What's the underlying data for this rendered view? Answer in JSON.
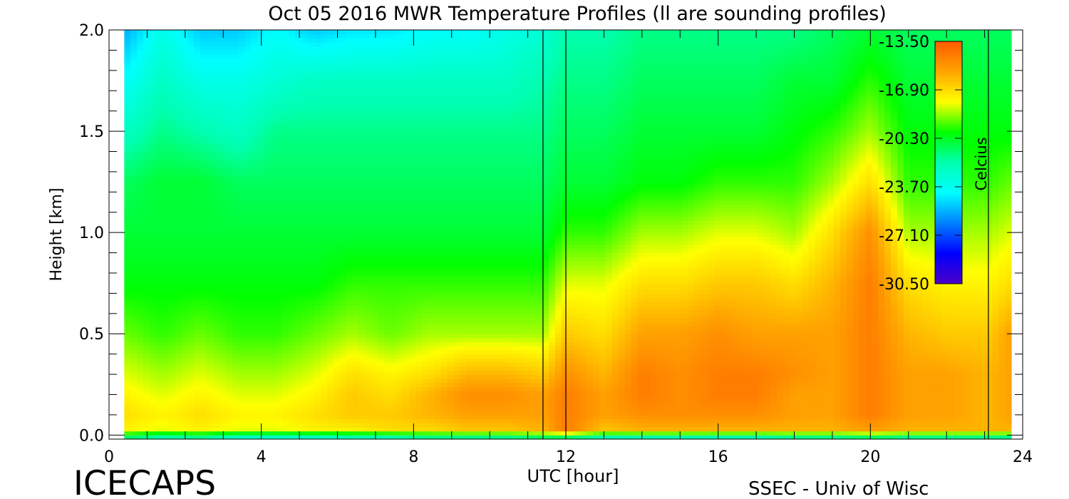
{
  "chart_data": {
    "type": "heatmap",
    "title": "Oct 05 2016 MWR Temperature Profiles (ll are sounding profiles)",
    "xlabel": "UTC [hour]",
    "ylabel": "Height [km]",
    "xlim": [
      0,
      24
    ],
    "ylim": [
      -0.02,
      2.0
    ],
    "x_ticks": [
      0,
      4,
      8,
      12,
      16,
      20,
      24
    ],
    "x_tick_labels": [
      "0",
      "4",
      "8",
      "12",
      "16",
      "20",
      "24"
    ],
    "y_ticks": [
      0.0,
      0.5,
      1.0,
      1.5,
      2.0
    ],
    "y_tick_labels": [
      "0.0",
      "0.5",
      "1.0",
      "1.5",
      "2.0"
    ],
    "data_x_range": [
      0.4,
      23.7
    ],
    "colorbar": {
      "label": "Celcius",
      "min": -30.5,
      "max": -13.5,
      "ticks": [
        -13.5,
        -16.9,
        -20.3,
        -23.7,
        -27.1,
        -30.5
      ],
      "tick_labels": [
        "-13.50",
        "-16.90",
        "-20.30",
        "-23.70",
        "-27.10",
        "-30.50"
      ],
      "colors": [
        "#ff5a00",
        "#ffa500",
        "#ffff00",
        "#00ff00",
        "#00ffb0",
        "#00ffff",
        "#0080ff",
        "#0000ff",
        "#4b00c8"
      ]
    },
    "sounding_times_utc": [
      11.4,
      12.0,
      23.1
    ],
    "time_samples_utc": [
      0.4,
      1.4,
      2.4,
      3.4,
      4.4,
      5.4,
      6.4,
      7.4,
      8.4,
      9.4,
      10.4,
      11.4,
      12.0,
      13.0,
      14.0,
      15.0,
      16.0,
      17.0,
      18.0,
      19.0,
      20.0,
      21.0,
      22.0,
      23.1,
      23.7
    ],
    "height_samples_km": [
      0.0,
      0.02,
      0.1,
      0.2,
      0.3,
      0.5,
      0.75,
      1.0,
      1.25,
      1.5,
      1.75,
      2.0
    ],
    "temperature_celsius": [
      [
        -21.0,
        -22.0,
        -21.5,
        -22.5,
        -22.5,
        -22.5,
        -22.0,
        -22.0,
        -21.5,
        -21.5,
        -21.5,
        -21.0,
        -21.0,
        -22.0,
        -22.0,
        -22.0,
        -22.0,
        -22.0,
        -21.5,
        -21.5,
        -21.0,
        -21.5,
        -21.5,
        -21.5,
        -21.5
      ],
      [
        -17.5,
        -18.0,
        -17.5,
        -18.0,
        -18.0,
        -17.5,
        -17.5,
        -17.0,
        -17.0,
        -16.5,
        -16.5,
        -16.0,
        -14.5,
        -16.5,
        -16.0,
        -16.0,
        -16.0,
        -16.0,
        -16.0,
        -16.0,
        -15.5,
        -16.0,
        -16.0,
        -16.0,
        -16.0
      ],
      [
        -17.0,
        -17.5,
        -17.0,
        -17.5,
        -17.5,
        -17.0,
        -16.5,
        -16.5,
        -16.0,
        -15.5,
        -15.5,
        -15.5,
        -14.5,
        -15.5,
        -15.0,
        -15.0,
        -15.0,
        -15.0,
        -15.5,
        -15.5,
        -14.5,
        -15.5,
        -15.5,
        -16.0,
        -15.5
      ],
      [
        -17.5,
        -18.0,
        -17.5,
        -18.0,
        -18.0,
        -17.5,
        -16.5,
        -17.0,
        -16.0,
        -15.0,
        -15.0,
        -15.5,
        -14.5,
        -15.5,
        -14.5,
        -15.0,
        -14.5,
        -14.5,
        -15.5,
        -15.5,
        -14.5,
        -15.5,
        -15.5,
        -16.0,
        -15.5
      ],
      [
        -18.0,
        -18.5,
        -18.0,
        -18.5,
        -18.5,
        -18.0,
        -17.0,
        -17.5,
        -17.0,
        -16.0,
        -16.0,
        -16.5,
        -15.0,
        -16.0,
        -14.5,
        -15.0,
        -14.5,
        -14.5,
        -15.0,
        -15.5,
        -14.5,
        -15.5,
        -15.5,
        -16.0,
        -15.5
      ],
      [
        -19.0,
        -19.5,
        -19.0,
        -19.5,
        -19.5,
        -19.0,
        -18.5,
        -19.0,
        -18.5,
        -18.5,
        -18.5,
        -18.5,
        -16.5,
        -17.0,
        -15.5,
        -15.5,
        -15.0,
        -15.5,
        -15.5,
        -15.5,
        -14.5,
        -16.0,
        -16.5,
        -16.5,
        -15.5
      ],
      [
        -20.0,
        -20.0,
        -20.0,
        -20.0,
        -20.0,
        -20.0,
        -19.5,
        -19.5,
        -19.5,
        -19.5,
        -19.5,
        -19.5,
        -18.0,
        -18.0,
        -17.0,
        -17.0,
        -16.5,
        -16.5,
        -17.0,
        -16.0,
        -14.5,
        -17.0,
        -17.5,
        -17.5,
        -17.0
      ],
      [
        -20.5,
        -20.5,
        -20.5,
        -20.5,
        -20.5,
        -20.5,
        -20.5,
        -20.5,
        -20.5,
        -20.5,
        -20.5,
        -20.5,
        -19.5,
        -19.5,
        -18.5,
        -18.5,
        -18.0,
        -18.0,
        -18.5,
        -17.0,
        -15.0,
        -18.5,
        -18.5,
        -18.5,
        -18.0
      ],
      [
        -21.0,
        -20.5,
        -20.5,
        -21.0,
        -21.0,
        -21.0,
        -21.0,
        -21.0,
        -21.0,
        -21.0,
        -21.0,
        -21.0,
        -20.5,
        -20.5,
        -20.0,
        -20.0,
        -19.5,
        -19.5,
        -19.5,
        -18.5,
        -17.0,
        -19.5,
        -19.5,
        -19.5,
        -19.0
      ],
      [
        -22.5,
        -21.5,
        -22.0,
        -22.5,
        -21.5,
        -21.5,
        -21.5,
        -21.5,
        -21.5,
        -21.5,
        -21.5,
        -21.5,
        -21.0,
        -21.0,
        -20.5,
        -20.5,
        -20.5,
        -20.5,
        -20.0,
        -19.5,
        -18.5,
        -20.0,
        -20.0,
        -20.0,
        -20.0
      ],
      [
        -24.0,
        -22.5,
        -23.5,
        -23.5,
        -23.0,
        -22.5,
        -22.5,
        -22.5,
        -22.5,
        -22.5,
        -22.5,
        -22.0,
        -21.5,
        -21.5,
        -21.0,
        -21.0,
        -21.0,
        -21.0,
        -20.5,
        -20.5,
        -19.5,
        -20.5,
        -20.5,
        -20.5,
        -20.5
      ],
      [
        -25.5,
        -23.5,
        -25.0,
        -25.0,
        -24.0,
        -25.0,
        -24.5,
        -24.5,
        -24.0,
        -24.0,
        -23.5,
        -23.0,
        -22.0,
        -22.0,
        -21.5,
        -21.5,
        -21.5,
        -21.5,
        -21.5,
        -21.0,
        -20.5,
        -21.0,
        -21.0,
        -21.0,
        -21.0
      ]
    ],
    "annotations": [
      "ICECAPS",
      "SSEC - Univ of Wisc"
    ],
    "grid": false,
    "legend": "colorbar top-right inside plot"
  }
}
